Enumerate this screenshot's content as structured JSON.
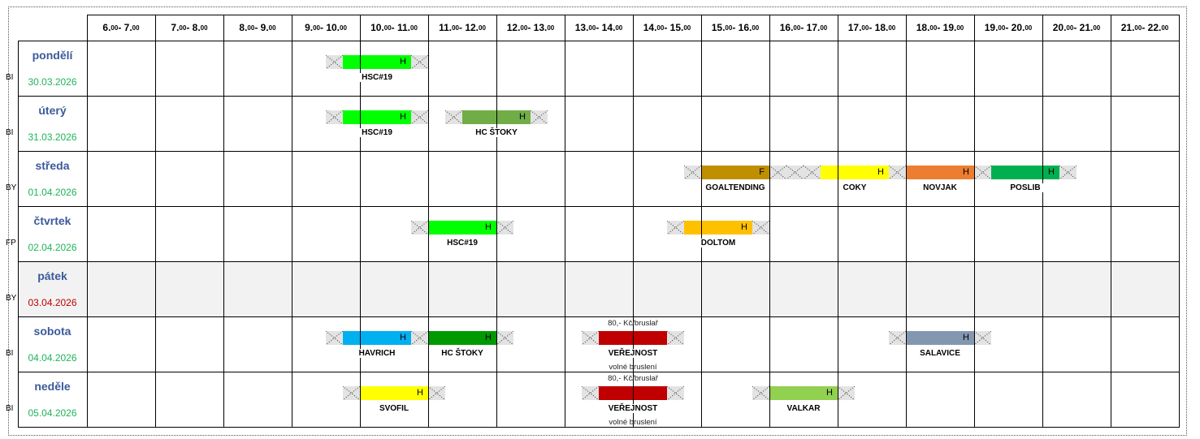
{
  "hours": [
    {
      "from": "6",
      "to": "7",
      "min": "00"
    },
    {
      "from": "7",
      "to": "8",
      "min": "00"
    },
    {
      "from": "8",
      "to": "9",
      "min": "00"
    },
    {
      "from": "9",
      "to": "10",
      "min": "00"
    },
    {
      "from": "10",
      "to": "11",
      "min": "00"
    },
    {
      "from": "11",
      "to": "12",
      "min": "00"
    },
    {
      "from": "12",
      "to": "13",
      "min": "00"
    },
    {
      "from": "13",
      "to": "14",
      "min": "00"
    },
    {
      "from": "14",
      "to": "15",
      "min": "00"
    },
    {
      "from": "15",
      "to": "16",
      "min": "00"
    },
    {
      "from": "16",
      "to": "17",
      "min": "00"
    },
    {
      "from": "17",
      "to": "18",
      "min": "00"
    },
    {
      "from": "18",
      "to": "19",
      "min": "00"
    },
    {
      "from": "19",
      "to": "20",
      "min": "00"
    },
    {
      "from": "20",
      "to": "21",
      "min": "00"
    },
    {
      "from": "21",
      "to": "22",
      "min": "00"
    }
  ],
  "colors": {
    "day_name": "#3B5A9A",
    "date": "#1FB35A",
    "date_holiday": "#C00000",
    "holiday_bg": "#F2F2F2",
    "pad": "#E3E3E3"
  },
  "days": [
    {
      "code": "BI",
      "name": "pondělí",
      "date": "30.03.2026",
      "holiday": false,
      "events": [
        {
          "label": "HSC#19",
          "start": 9.75,
          "end": 10.75,
          "pre": 0.25,
          "post": 0.25,
          "color": "#00FF00",
          "tag": "H"
        }
      ]
    },
    {
      "code": "BI",
      "name": "úterý",
      "date": "31.03.2026",
      "holiday": false,
      "events": [
        {
          "label": "HSC#19",
          "start": 9.75,
          "end": 10.75,
          "pre": 0.25,
          "post": 0.25,
          "color": "#00FF00",
          "tag": "H"
        },
        {
          "label": "HC ŠTOKY",
          "start": 11.5,
          "end": 12.5,
          "pre": 0.25,
          "post": 0.25,
          "color": "#70AD47",
          "tag": "H"
        }
      ]
    },
    {
      "code": "BY",
      "name": "středa",
      "date": "01.04.2026",
      "holiday": false,
      "events": [
        {
          "label": "GOALTENDING",
          "start": 15,
          "end": 16,
          "pre": 0.25,
          "post": 0.25,
          "color": "#BF8F00",
          "tag": "F"
        },
        {
          "label": "COKY",
          "start": 16.75,
          "end": 17.75,
          "pre": 0.5,
          "post": 0.25,
          "color": "#FFFF00",
          "tag": "H"
        },
        {
          "label": "NOVJAK",
          "start": 18,
          "end": 19,
          "pre": 0,
          "post": 0.25,
          "color": "#ED7D31",
          "tag": "H"
        },
        {
          "label": "POSLIB",
          "start": 19.25,
          "end": 20.25,
          "pre": 0,
          "post": 0.25,
          "color": "#00B050",
          "tag": "H"
        }
      ]
    },
    {
      "code": "FP",
      "name": "čtvrtek",
      "date": "02.04.2026",
      "holiday": false,
      "events": [
        {
          "label": "HSC#19",
          "start": 11,
          "end": 12,
          "pre": 0.25,
          "post": 0.25,
          "color": "#00FF00",
          "tag": "H"
        },
        {
          "label": "DOLTOM",
          "start": 14.75,
          "end": 15.75,
          "pre": 0.25,
          "post": 0.25,
          "color": "#FFC000",
          "tag": "H"
        }
      ]
    },
    {
      "code": "BY",
      "name": "pátek",
      "date": "03.04.2026",
      "holiday": true,
      "events": []
    },
    {
      "code": "BI",
      "name": "sobota",
      "date": "04.04.2026",
      "holiday": false,
      "events": [
        {
          "label": "HAVRICH",
          "start": 9.75,
          "end": 10.75,
          "pre": 0.25,
          "post": 0.25,
          "color": "#00B0F0",
          "tag": "H"
        },
        {
          "label": "HC ŠTOKY",
          "start": 11,
          "end": 12,
          "pre": 0,
          "post": 0.25,
          "color": "#009900",
          "tag": "H"
        },
        {
          "label": "VEŘEJNOST",
          "start": 13.5,
          "end": 14.5,
          "pre": 0.25,
          "post": 0.25,
          "color": "#C00000",
          "tag": "",
          "above": "80,- Kč/bruslař",
          "below": "volné bruslení"
        },
        {
          "label": "SALAVICE",
          "start": 18,
          "end": 19,
          "pre": 0.25,
          "post": 0.25,
          "color": "#8497B0",
          "tag": "H"
        }
      ]
    },
    {
      "code": "BI",
      "name": "neděle",
      "date": "05.04.2026",
      "holiday": false,
      "events": [
        {
          "label": "SVOFIL",
          "start": 10,
          "end": 11,
          "pre": 0.25,
          "post": 0.25,
          "color": "#FFFF00",
          "tag": "H"
        },
        {
          "label": "VEŘEJNOST",
          "start": 13.5,
          "end": 14.5,
          "pre": 0.25,
          "post": 0.25,
          "color": "#C00000",
          "tag": "",
          "above": "80,- Kč/bruslař",
          "below": "volné bruslení"
        },
        {
          "label": "VALKAR",
          "start": 16,
          "end": 17,
          "pre": 0.25,
          "post": 0.25,
          "color": "#92D050",
          "tag": "H"
        }
      ]
    }
  ]
}
